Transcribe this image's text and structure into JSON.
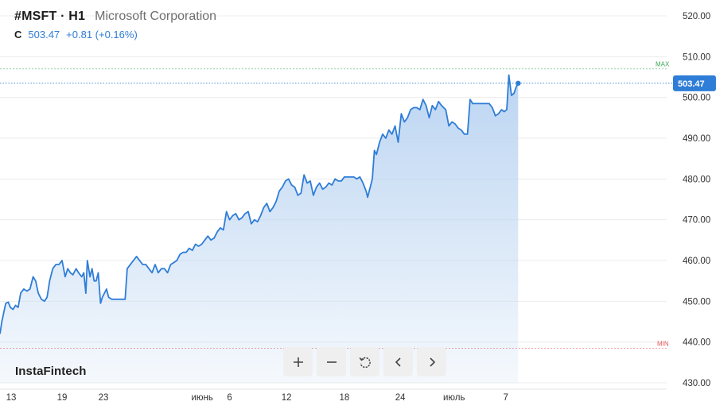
{
  "header": {
    "symbol": "#MSFT · H1",
    "company": "Microsoft Corporation",
    "close_label": "C",
    "close_value": "503.47",
    "change": "+0.81 (+0.16%)"
  },
  "logo": "InstaFintech",
  "toolbar": {
    "zoom_in": "zoom-in",
    "zoom_out": "zoom-out",
    "reset": "reset",
    "back": "back",
    "forward": "forward"
  },
  "colors": {
    "line": "#2e7dd7",
    "fill_top": "#bcd5f2",
    "max": "#3aa655",
    "min": "#e25555",
    "grid": "#ececec"
  },
  "chart_data": {
    "type": "area",
    "ylim": [
      430,
      520
    ],
    "yticks": [
      "520.00",
      "510.00",
      "500.00",
      "490.00",
      "480.00",
      "470.00",
      "460.00",
      "450.00",
      "440.00",
      "430.00"
    ],
    "xticks": [
      "13",
      "19",
      "23",
      "июнь",
      "6",
      "12",
      "18",
      "24",
      "июль",
      "7"
    ],
    "max_label": "MAX",
    "min_label": "MIN",
    "max_value": 507,
    "min_value": 438.5,
    "current_value": "503.47",
    "current_numeric": 503.47,
    "x_start_day": 13,
    "series": [
      {
        "points": [
          [
            13,
            442
          ],
          [
            13.18,
            445
          ],
          [
            13.35,
            447
          ],
          [
            13.55,
            449.5
          ],
          [
            13.8,
            449.8
          ],
          [
            14,
            448.5
          ],
          [
            14.25,
            448
          ],
          [
            14.5,
            449
          ],
          [
            14.75,
            448.5
          ],
          [
            15,
            452
          ],
          [
            15.3,
            453
          ],
          [
            15.6,
            452.5
          ],
          [
            15.9,
            453
          ],
          [
            16.2,
            456
          ],
          [
            16.45,
            455
          ],
          [
            16.7,
            452
          ],
          [
            17,
            450.5
          ],
          [
            17.3,
            450
          ],
          [
            17.55,
            451
          ],
          [
            17.8,
            455
          ],
          [
            18.1,
            458
          ],
          [
            18.4,
            459
          ],
          [
            18.7,
            459
          ],
          [
            19,
            460
          ],
          [
            19.3,
            456
          ],
          [
            19.55,
            458
          ],
          [
            19.8,
            457
          ],
          [
            20.05,
            456.5
          ],
          [
            20.35,
            458
          ],
          [
            20.6,
            457
          ],
          [
            20.9,
            456
          ],
          [
            21.1,
            457
          ],
          [
            21.3,
            452
          ],
          [
            21.45,
            460
          ],
          [
            21.7,
            456
          ],
          [
            21.9,
            458
          ],
          [
            22.1,
            455
          ],
          [
            22.3,
            455
          ],
          [
            22.5,
            457
          ],
          [
            22.72,
            449.5
          ],
          [
            22.9,
            451
          ],
          [
            23.1,
            452
          ],
          [
            23.3,
            453
          ],
          [
            23.5,
            451
          ],
          [
            23.8,
            450.5
          ],
          [
            24.5,
            450.5
          ],
          [
            25.1,
            450.5
          ],
          [
            25.3,
            458
          ],
          [
            25.6,
            459
          ],
          [
            25.9,
            460
          ],
          [
            26.2,
            461
          ],
          [
            26.5,
            460
          ],
          [
            26.8,
            459
          ],
          [
            27.1,
            459
          ],
          [
            27.4,
            458
          ],
          [
            27.7,
            457
          ],
          [
            28,
            459
          ],
          [
            28.3,
            457
          ],
          [
            28.6,
            458
          ],
          [
            28.9,
            458
          ],
          [
            29.2,
            457
          ],
          [
            29.5,
            459
          ],
          [
            29.8,
            459.5
          ],
          [
            30.1,
            460
          ],
          [
            30.4,
            461.5
          ],
          [
            30.7,
            462
          ],
          [
            31,
            462
          ],
          [
            31.3,
            463
          ],
          [
            31.6,
            462.5
          ],
          [
            31.9,
            464
          ],
          [
            32.2,
            463.5
          ],
          [
            32.5,
            464
          ],
          [
            32.8,
            465
          ],
          [
            33.1,
            466
          ],
          [
            33.4,
            465
          ],
          [
            33.7,
            465.5
          ],
          [
            34,
            467
          ],
          [
            34.3,
            468
          ],
          [
            34.6,
            467.5
          ],
          [
            34.9,
            472
          ],
          [
            35.2,
            470
          ],
          [
            35.5,
            471
          ],
          [
            35.8,
            471.5
          ],
          [
            36.1,
            470
          ],
          [
            36.4,
            470.5
          ],
          [
            36.7,
            471.5
          ],
          [
            37,
            472
          ],
          [
            37.3,
            469
          ],
          [
            37.6,
            470
          ],
          [
            37.9,
            469.5
          ],
          [
            38.2,
            471
          ],
          [
            38.5,
            473
          ],
          [
            38.8,
            474
          ],
          [
            39.1,
            472
          ],
          [
            39.4,
            473
          ],
          [
            39.7,
            474.5
          ],
          [
            40,
            477
          ],
          [
            40.3,
            478
          ],
          [
            40.6,
            479.5
          ],
          [
            40.9,
            480
          ],
          [
            41.2,
            478.5
          ],
          [
            41.5,
            478
          ],
          [
            41.8,
            476
          ],
          [
            42.1,
            476.5
          ],
          [
            42.4,
            481
          ],
          [
            42.7,
            479
          ],
          [
            43,
            479.5
          ],
          [
            43.3,
            476
          ],
          [
            43.6,
            478
          ],
          [
            43.9,
            479
          ],
          [
            44.2,
            477.5
          ],
          [
            44.5,
            478
          ],
          [
            44.8,
            479
          ],
          [
            45.1,
            478.5
          ],
          [
            45.4,
            480
          ],
          [
            45.7,
            479.5
          ],
          [
            46,
            479.5
          ],
          [
            46.3,
            480.5
          ],
          [
            46.6,
            480.5
          ],
          [
            46.9,
            480.5
          ],
          [
            47.2,
            480.5
          ],
          [
            47.5,
            480
          ],
          [
            47.8,
            480.5
          ],
          [
            48.1,
            479
          ],
          [
            48.4,
            477
          ],
          [
            48.55,
            475.5
          ],
          [
            48.8,
            478
          ],
          [
            49,
            480
          ],
          [
            49.2,
            487
          ],
          [
            49.4,
            486
          ],
          [
            49.7,
            489
          ],
          [
            50,
            491
          ],
          [
            50.3,
            490
          ],
          [
            50.6,
            492
          ],
          [
            50.9,
            491
          ],
          [
            51.2,
            493
          ],
          [
            51.5,
            489
          ],
          [
            51.8,
            496
          ],
          [
            52.1,
            494
          ],
          [
            52.4,
            495
          ],
          [
            52.7,
            497
          ],
          [
            53,
            497.5
          ],
          [
            53.3,
            497.5
          ],
          [
            53.6,
            497
          ],
          [
            53.9,
            499.5
          ],
          [
            54.2,
            498
          ],
          [
            54.5,
            495
          ],
          [
            54.8,
            498
          ],
          [
            55.1,
            497
          ],
          [
            55.4,
            499
          ],
          [
            55.7,
            498
          ],
          [
            56.1,
            497
          ],
          [
            56.4,
            493
          ],
          [
            56.7,
            494
          ],
          [
            57,
            493.5
          ],
          [
            57.3,
            492.5
          ],
          [
            57.6,
            492
          ],
          [
            57.9,
            491
          ],
          [
            58.2,
            491
          ],
          [
            58.45,
            499.5
          ],
          [
            58.7,
            498.5
          ],
          [
            59,
            498.5
          ],
          [
            59.5,
            498.5
          ],
          [
            60,
            498.5
          ],
          [
            60.3,
            498.5
          ],
          [
            60.6,
            497.5
          ],
          [
            60.9,
            495.5
          ],
          [
            61.2,
            496
          ],
          [
            61.5,
            497
          ],
          [
            61.75,
            496.5
          ],
          [
            62,
            497
          ],
          [
            62.2,
            505.5
          ],
          [
            62.45,
            500.5
          ],
          [
            62.7,
            501
          ],
          [
            62.9,
            502.5
          ],
          [
            63.1,
            503.47
          ]
        ]
      }
    ]
  }
}
